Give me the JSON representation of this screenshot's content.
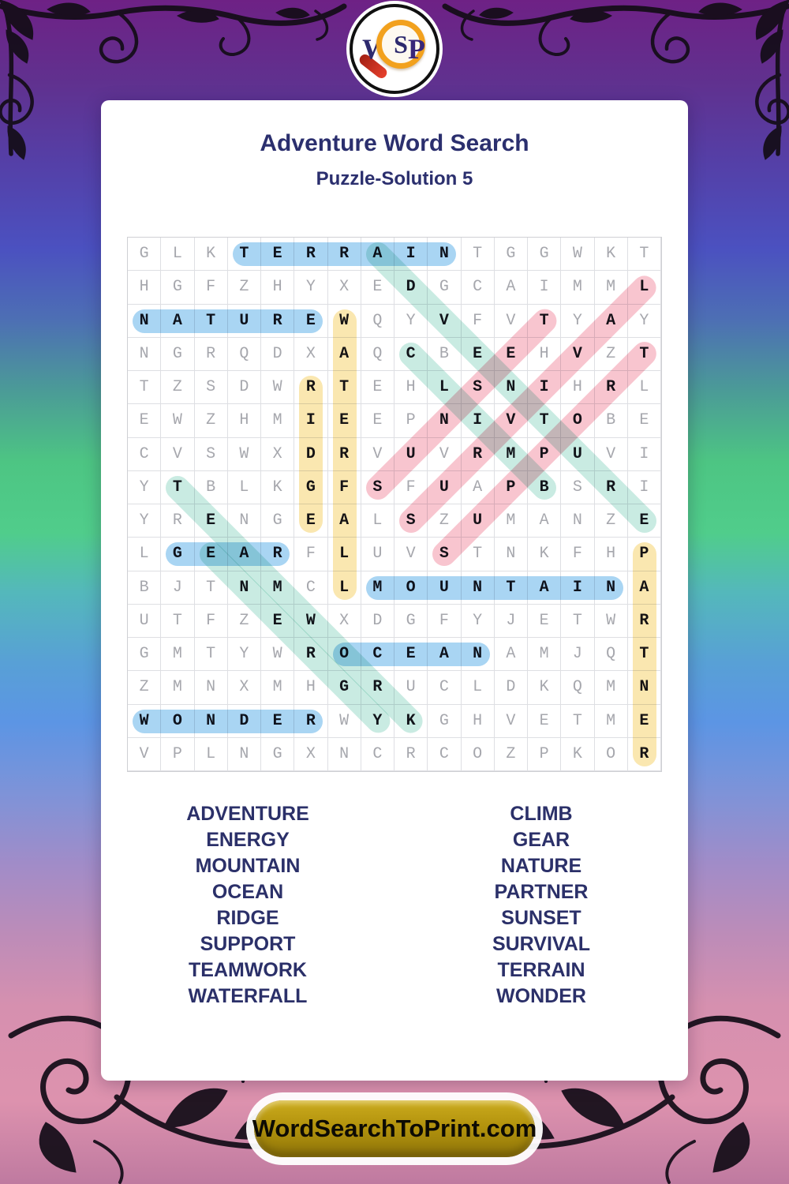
{
  "logo": {
    "w": "W",
    "s": "S",
    "p": "P"
  },
  "header": {
    "title": "Adventure Word Search",
    "subtitle": "Puzzle-Solution 5"
  },
  "grid": {
    "size": 16,
    "rows": [
      "GLKTERRAINTGGWKT",
      "HGFZHYXEDGCAIMML",
      "NATUREWQYVFVTYAY",
      "NGRQDXAQCBEEHVZT",
      "TZSDWRTEHLSNIHRL",
      "EWZHMIEEPNIVTOBE",
      "CVSWXDRVUVRMPUVI",
      "YTBLKGFSFUAPBSRI",
      "YRENGEALSZUMANZE",
      "LGEARFLUVSTNKFHP",
      "BJTNMCLMOUNTAINA",
      "UTFZEWXDGFYJETWR",
      "GMTYWROCEANAMJQT",
      "ZMNXMHGRUCLDKQMN",
      "WONDERWYKGHVETME",
      "VPLNGXNCRCOZPKOR"
    ]
  },
  "highlight_colors": {
    "blue": "#a9d5f3",
    "yellow": "#fae7b0",
    "teal": "#c9ebe2",
    "pink": "#f8c5cf"
  },
  "solutions": [
    {
      "word": "TERRAIN",
      "start": [
        1,
        4
      ],
      "end": [
        1,
        10
      ],
      "color": "blue"
    },
    {
      "word": "NATURE",
      "start": [
        3,
        1
      ],
      "end": [
        3,
        6
      ],
      "color": "blue"
    },
    {
      "word": "GEAR",
      "start": [
        10,
        2
      ],
      "end": [
        10,
        5
      ],
      "color": "blue"
    },
    {
      "word": "MOUNTAIN",
      "start": [
        11,
        8
      ],
      "end": [
        11,
        15
      ],
      "color": "blue"
    },
    {
      "word": "OCEAN",
      "start": [
        13,
        7
      ],
      "end": [
        13,
        11
      ],
      "color": "blue"
    },
    {
      "word": "WONDER",
      "start": [
        15,
        1
      ],
      "end": [
        15,
        6
      ],
      "color": "blue"
    },
    {
      "word": "RIDGE",
      "start": [
        5,
        6
      ],
      "end": [
        9,
        6
      ],
      "color": "yellow"
    },
    {
      "word": "WATERFALL",
      "start": [
        3,
        7
      ],
      "end": [
        11,
        7
      ],
      "color": "yellow"
    },
    {
      "word": "PARTNER",
      "start": [
        10,
        16
      ],
      "end": [
        16,
        16
      ],
      "color": "yellow"
    },
    {
      "word": "ADVENTURE",
      "start": [
        1,
        8
      ],
      "end": [
        9,
        16
      ],
      "color": "teal"
    },
    {
      "word": "CLIMB",
      "start": [
        4,
        9
      ],
      "end": [
        8,
        13
      ],
      "color": "teal"
    },
    {
      "word": "TEAMWORK",
      "start": [
        8,
        2
      ],
      "end": [
        15,
        9
      ],
      "color": "teal"
    },
    {
      "word": "ENERGY",
      "start": [
        10,
        3
      ],
      "end": [
        15,
        8
      ],
      "color": "teal"
    },
    {
      "word": "SUNSET",
      "start": [
        8,
        8
      ],
      "end": [
        3,
        13
      ],
      "color": "pink"
    },
    {
      "word": "SURVIVAL",
      "start": [
        9,
        9
      ],
      "end": [
        2,
        16
      ],
      "color": "pink"
    },
    {
      "word": "SUPPORT",
      "start": [
        10,
        10
      ],
      "end": [
        4,
        16
      ],
      "color": "pink"
    }
  ],
  "word_list": {
    "left": [
      "ADVENTURE",
      "ENERGY",
      "MOUNTAIN",
      "OCEAN",
      "RIDGE",
      "SUPPORT",
      "TEAMWORK",
      "WATERFALL"
    ],
    "right": [
      "CLIMB",
      "GEAR",
      "NATURE",
      "PARTNER",
      "SUNSET",
      "SURVIVAL",
      "TERRAIN",
      "WONDER"
    ]
  },
  "footer": {
    "button_label": "WordSearchToPrint.com"
  }
}
